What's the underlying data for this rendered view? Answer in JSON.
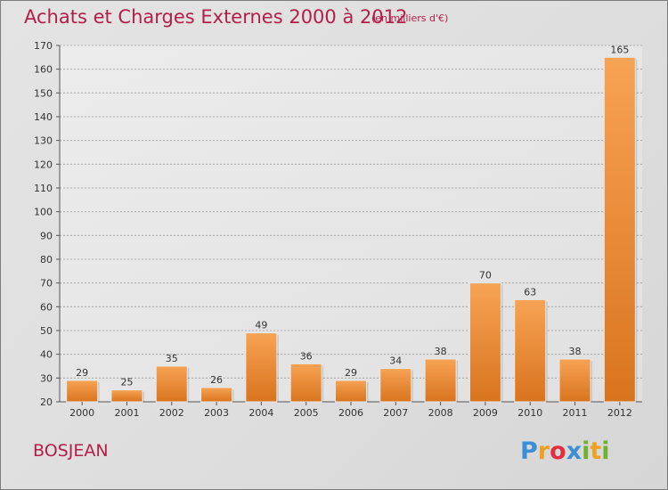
{
  "title": "Achats et Charges Externes 2000 à 2012",
  "subtitle": "(en milliers d'€)",
  "commune": "BOSJEAN",
  "logo": {
    "text": "Proxiti",
    "letters": [
      {
        "ch": "P",
        "color": "#3a8fd6"
      },
      {
        "ch": "r",
        "color": "#f0a020"
      },
      {
        "ch": "o",
        "color": "#e03040"
      },
      {
        "ch": "x",
        "color": "#3a8fd6"
      },
      {
        "ch": "i",
        "color": "#70b030"
      },
      {
        "ch": "t",
        "color": "#f0a020"
      },
      {
        "ch": "i",
        "color": "#70b030"
      }
    ]
  },
  "colors": {
    "title": "#b41e4a",
    "bar_light": "#f7a354",
    "bar_dark": "#d9741e",
    "grid": "#9a9a9a",
    "plot_bg": "#e8e8e8"
  },
  "chart_data": {
    "type": "bar",
    "title": "Achats et Charges Externes 2000 à 2012",
    "subtitle": "(en milliers d'€)",
    "categories": [
      "2000",
      "2001",
      "2002",
      "2003",
      "2004",
      "2005",
      "2006",
      "2007",
      "2008",
      "2009",
      "2010",
      "2011",
      "2012"
    ],
    "values": [
      29,
      25,
      35,
      26,
      49,
      36,
      29,
      34,
      38,
      70,
      63,
      38,
      165
    ],
    "xlabel": "",
    "ylabel": "",
    "ylim": [
      20,
      170
    ],
    "yticks": [
      20,
      30,
      40,
      50,
      60,
      70,
      80,
      90,
      100,
      110,
      120,
      130,
      140,
      150,
      160,
      170
    ],
    "grid": "horizontal dashed"
  }
}
